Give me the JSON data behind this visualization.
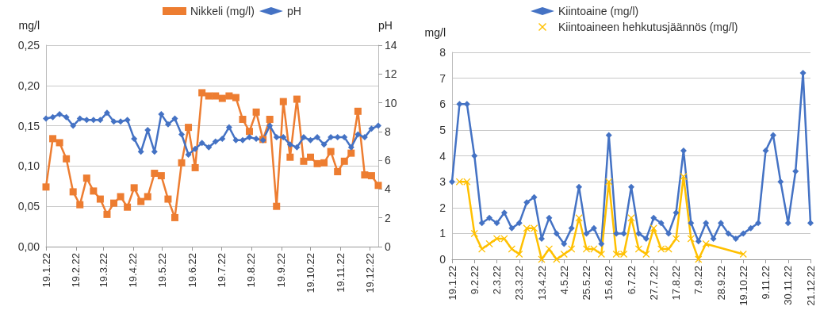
{
  "chart_data": [
    {
      "type": "line",
      "ylabel": "mg/l",
      "y2label": "pH",
      "legend": "top",
      "grid": "y",
      "x": [
        "2022-01-19",
        "2022-01-26",
        "2022-02-02",
        "2022-02-09",
        "2022-02-16",
        "2022-02-23",
        "2022-03-02",
        "2022-03-09",
        "2022-03-16",
        "2022-03-23",
        "2022-03-30",
        "2022-04-06",
        "2022-04-13",
        "2022-04-20",
        "2022-04-27",
        "2022-05-04",
        "2022-05-11",
        "2022-05-18",
        "2022-05-25",
        "2022-06-01",
        "2022-06-08",
        "2022-06-15",
        "2022-06-22",
        "2022-06-29",
        "2022-07-06",
        "2022-07-13",
        "2022-07-20",
        "2022-07-27",
        "2022-08-03",
        "2022-08-10",
        "2022-08-17",
        "2022-08-24",
        "2022-08-31",
        "2022-09-07",
        "2022-09-14",
        "2022-09-21",
        "2022-09-28",
        "2022-10-05",
        "2022-10-12",
        "2022-10-19",
        "2022-10-26",
        "2022-11-02",
        "2022-11-09",
        "2022-11-16",
        "2022-11-23",
        "2022-11-30",
        "2022-12-07",
        "2022-12-14",
        "2022-12-21",
        "2022-12-28"
      ],
      "series": [
        {
          "name": "Nikkeli (mg/l)",
          "color": "#ed7d31",
          "marker": "square",
          "values": [
            0.074,
            0.134,
            0.129,
            0.109,
            0.068,
            0.052,
            0.085,
            0.069,
            0.059,
            0.04,
            0.054,
            0.062,
            0.049,
            0.073,
            0.056,
            0.062,
            0.091,
            0.088,
            0.059,
            0.036,
            0.104,
            0.148,
            0.098,
            0.191,
            0.187,
            0.187,
            0.184,
            0.187,
            0.185,
            0.158,
            0.143,
            0.167,
            0.133,
            0.158,
            0.05,
            0.18,
            0.111,
            0.183,
            0.106,
            0.111,
            0.103,
            0.104,
            0.118,
            0.093,
            0.106,
            0.116,
            0.168,
            0.089,
            0.088,
            0.076
          ]
        },
        {
          "name": "pH",
          "color": "#4472c4",
          "marker": "diamond",
          "axis": "y2",
          "values": [
            8.9,
            9.0,
            9.2,
            9.0,
            8.4,
            8.9,
            8.8,
            8.8,
            8.8,
            9.3,
            8.7,
            8.7,
            8.8,
            7.5,
            6.6,
            8.1,
            6.6,
            9.2,
            8.5,
            8.9,
            7.8,
            6.4,
            6.8,
            7.2,
            6.9,
            7.3,
            7.5,
            8.3,
            7.4,
            7.4,
            7.6,
            7.5,
            7.4,
            8.4,
            7.6,
            7.6,
            7.1,
            6.9,
            7.6,
            7.4,
            7.6,
            7.1,
            7.6,
            7.6,
            7.6,
            6.9,
            7.8,
            7.6,
            8.2,
            8.4
          ]
        }
      ],
      "xlim": [
        "2022-01-19",
        "2022-12-28"
      ],
      "xticks": [
        {
          "value": "2022-01-19",
          "label": "19.1.22"
        },
        {
          "value": "2022-02-19",
          "label": "19.2.22"
        },
        {
          "value": "2022-03-19",
          "label": "19.3.22"
        },
        {
          "value": "2022-04-19",
          "label": "19.4.22"
        },
        {
          "value": "2022-05-19",
          "label": "19.5.22"
        },
        {
          "value": "2022-06-19",
          "label": "19.6.22"
        },
        {
          "value": "2022-07-19",
          "label": "19.7.22"
        },
        {
          "value": "2022-08-19",
          "label": "19.8.22"
        },
        {
          "value": "2022-09-19",
          "label": "19.9.22"
        },
        {
          "value": "2022-10-19",
          "label": "19.10.22"
        },
        {
          "value": "2022-11-19",
          "label": "19.11.22"
        },
        {
          "value": "2022-12-19",
          "label": "19.12.22"
        }
      ],
      "ylim": [
        0,
        0.25
      ],
      "yticks": [
        {
          "value": 0,
          "label": "0,00"
        },
        {
          "value": 0.05,
          "label": "0,05"
        },
        {
          "value": 0.1,
          "label": "0,10"
        },
        {
          "value": 0.15,
          "label": "0,15"
        },
        {
          "value": 0.2,
          "label": "0,20"
        },
        {
          "value": 0.25,
          "label": "0,25"
        }
      ],
      "y2lim": [
        0,
        14
      ],
      "y2ticks": [
        0,
        2,
        4,
        6,
        8,
        10,
        12,
        14
      ]
    },
    {
      "type": "line",
      "ylabel": "mg/l",
      "legend": "top",
      "grid": "y",
      "categories": [
        "19.1.22",
        null,
        null,
        "9.2.22",
        null,
        null,
        "2.3.22",
        null,
        null,
        "23.3.22",
        null,
        null,
        "13.4.22",
        null,
        null,
        "4.5.22",
        null,
        null,
        "25.5.22",
        null,
        null,
        "15.6.22",
        null,
        null,
        "6.7.22",
        null,
        null,
        "27.7.22",
        null,
        null,
        "17.8.22",
        null,
        null,
        "7.9.22",
        null,
        null,
        "28.9.22",
        null,
        null,
        "19.10.22",
        null,
        null,
        "9.11.22",
        null,
        null,
        "30.11.22",
        null,
        null,
        "21.12.22"
      ],
      "series": [
        {
          "name": "Kiintoaine (mg/l)",
          "color": "#4472c4",
          "marker": "diamond",
          "values": [
            3.0,
            6.0,
            6.0,
            4.0,
            1.4,
            1.6,
            1.4,
            1.8,
            1.2,
            1.4,
            2.2,
            2.4,
            0.8,
            1.6,
            1.0,
            0.6,
            1.2,
            2.8,
            1.0,
            1.2,
            0.6,
            4.8,
            1.0,
            1.0,
            2.8,
            1.0,
            0.8,
            1.6,
            1.4,
            1.0,
            1.8,
            4.2,
            1.4,
            0.7,
            1.4,
            0.8,
            1.4,
            1.0,
            0.8,
            1.0,
            1.2,
            1.4,
            4.2,
            4.8,
            3.0,
            1.4,
            3.4,
            7.2,
            1.4
          ]
        },
        {
          "name": "Kiintoaineen hehkutusjäännös (mg/l)",
          "color": "#ffc000",
          "marker": "cross",
          "values": [
            null,
            3.0,
            3.0,
            1.0,
            0.4,
            0.6,
            0.8,
            0.8,
            0.4,
            0.2,
            1.2,
            1.2,
            0.0,
            0.4,
            0.0,
            0.2,
            0.4,
            1.6,
            0.4,
            0.4,
            0.2,
            3.0,
            0.2,
            0.2,
            1.6,
            0.4,
            0.2,
            1.2,
            0.4,
            0.4,
            0.8,
            3.2,
            0.8,
            0.0,
            0.6,
            null,
            null,
            null,
            null,
            0.2,
            null,
            null,
            null,
            null,
            null,
            null,
            null,
            null,
            null
          ]
        }
      ],
      "ylim": [
        0,
        8
      ],
      "yticks": [
        0,
        1,
        2,
        3,
        4,
        5,
        6,
        7,
        8
      ]
    }
  ]
}
